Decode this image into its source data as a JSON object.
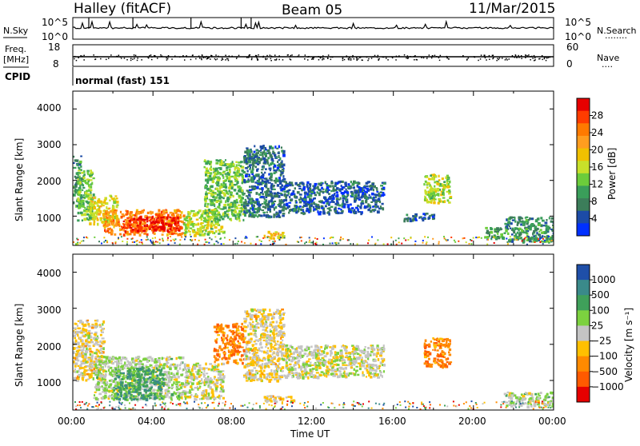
{
  "header": {
    "station": "Halley (fitACF)",
    "beam": "Beam 05",
    "date": "11/Mar/2015"
  },
  "left_labels": {
    "nsky": "N.Sky",
    "freq_top": "Freq.",
    "freq_unit": "[MHz]",
    "cpid": "CPID"
  },
  "right_labels": {
    "nsearch": "N.Search",
    "nave": "Nave",
    "nsearch_dots": "........",
    "nave_dots": "...."
  },
  "noise_panel": {
    "left_top": "10^5",
    "left_bottom": "10^0",
    "right_top": "10^5",
    "right_bottom": "10^0"
  },
  "freq_panel": {
    "left_ticks": [
      "18",
      "8"
    ],
    "right_ticks": [
      "60",
      "0"
    ]
  },
  "cpid_text": "normal (fast) 151",
  "power_panel": {
    "ylabel": "Slant Range [km]",
    "yticks": [
      "4000",
      "3000",
      "2000",
      "1000"
    ],
    "colorbar_label": "Power [dB]",
    "colorbar_ticks": [
      "28",
      "24",
      "20",
      "16",
      "12",
      "8",
      "4"
    ],
    "colors": [
      "#e60000",
      "#ff3c00",
      "#ff7a00",
      "#ff9d1f",
      "#f0c000",
      "#c8e02a",
      "#6ccc3b",
      "#3a9e5a",
      "#3c7d5a",
      "#1c4ba6",
      "#0030ff"
    ]
  },
  "velocity_panel": {
    "ylabel": "Slant Range [km]",
    "yticks": [
      "4000",
      "3000",
      "2000",
      "1000"
    ],
    "colorbar_label": "Velocity [m s⁻¹]",
    "colorbar_ticks": [
      "1000",
      "500",
      "100",
      "25",
      "−25",
      "−100",
      "−500",
      "−1000"
    ],
    "colors": [
      "#1f4fa8",
      "#3a8a8a",
      "#3fa05a",
      "#7cd13f",
      "#c4c4c4",
      "#ffc000",
      "#ff8a00",
      "#ff5a00",
      "#e60000"
    ]
  },
  "xaxis": {
    "ticks": [
      "00:00",
      "04:00",
      "08:00",
      "12:00",
      "16:00",
      "20:00",
      "00:00"
    ],
    "label": "Time UT"
  },
  "chart_data": {
    "type": "heatmap",
    "title": "Halley (fitACF) Beam 05 11/Mar/2015",
    "xlabel": "Time UT",
    "ylabel": "Slant Range [km]",
    "x_range_hours": [
      0,
      24
    ],
    "y_range_km": [
      180,
      4500
    ],
    "grid": false,
    "panels": [
      {
        "quantity": "Power [dB]",
        "scale": [
          0,
          30
        ],
        "regions": [
          {
            "t0": 0.0,
            "t1": 0.4,
            "r0": 1300,
            "r1": 2700,
            "value": 8
          },
          {
            "t0": 0.2,
            "t1": 1.0,
            "r0": 900,
            "r1": 2300,
            "value": 12
          },
          {
            "t0": 0.8,
            "t1": 2.2,
            "r0": 800,
            "r1": 1600,
            "value": 16
          },
          {
            "t0": 1.5,
            "t1": 5.5,
            "r0": 500,
            "r1": 1200,
            "value": 22
          },
          {
            "t0": 2.5,
            "t1": 5.3,
            "r0": 600,
            "r1": 1000,
            "value": 28
          },
          {
            "t0": 5.5,
            "t1": 7.5,
            "r0": 500,
            "r1": 1200,
            "value": 14
          },
          {
            "t0": 6.5,
            "t1": 8.5,
            "r0": 900,
            "r1": 2600,
            "value": 12
          },
          {
            "t0": 8.5,
            "t1": 10.5,
            "r0": 1000,
            "r1": 3000,
            "value": 6
          },
          {
            "t0": 9.5,
            "t1": 10.5,
            "r0": 400,
            "r1": 600,
            "value": 18
          },
          {
            "t0": 10.5,
            "t1": 15.5,
            "r0": 1100,
            "r1": 2000,
            "value": 5
          },
          {
            "t0": 16.5,
            "t1": 18.0,
            "r0": 900,
            "r1": 1100,
            "value": 5
          },
          {
            "t0": 17.5,
            "t1": 18.8,
            "r0": 1400,
            "r1": 2200,
            "value": 14
          },
          {
            "t0": 20.5,
            "t1": 21.5,
            "r0": 400,
            "r1": 700,
            "value": 10
          },
          {
            "t0": 21.5,
            "t1": 24.0,
            "r0": 300,
            "r1": 1000,
            "value": 8
          }
        ]
      },
      {
        "quantity": "Velocity [m s-1]",
        "scale": [
          -1000,
          1000
        ],
        "regions": [
          {
            "t0": 0.0,
            "t1": 1.5,
            "r0": 1000,
            "r1": 2700,
            "value": -100
          },
          {
            "t0": 1.0,
            "t1": 5.5,
            "r0": 500,
            "r1": 1700,
            "value": 100
          },
          {
            "t0": 2.0,
            "t1": 4.5,
            "r0": 500,
            "r1": 1400,
            "value": 500
          },
          {
            "t0": 5.5,
            "t1": 7.5,
            "r0": 500,
            "r1": 1500,
            "value": 0
          },
          {
            "t0": 7.0,
            "t1": 8.5,
            "r0": 1500,
            "r1": 2600,
            "value": -500
          },
          {
            "t0": 8.5,
            "t1": 10.5,
            "r0": 1000,
            "r1": 3000,
            "value": -100
          },
          {
            "t0": 9.5,
            "t1": 11.0,
            "r0": 400,
            "r1": 600,
            "value": -100
          },
          {
            "t0": 10.5,
            "t1": 15.5,
            "r0": 1100,
            "r1": 2000,
            "value": 0
          },
          {
            "t0": 17.5,
            "t1": 18.8,
            "r0": 1400,
            "r1": 2200,
            "value": -500
          },
          {
            "t0": 21.5,
            "t1": 24.0,
            "r0": 300,
            "r1": 700,
            "value": 100
          }
        ]
      }
    ]
  }
}
